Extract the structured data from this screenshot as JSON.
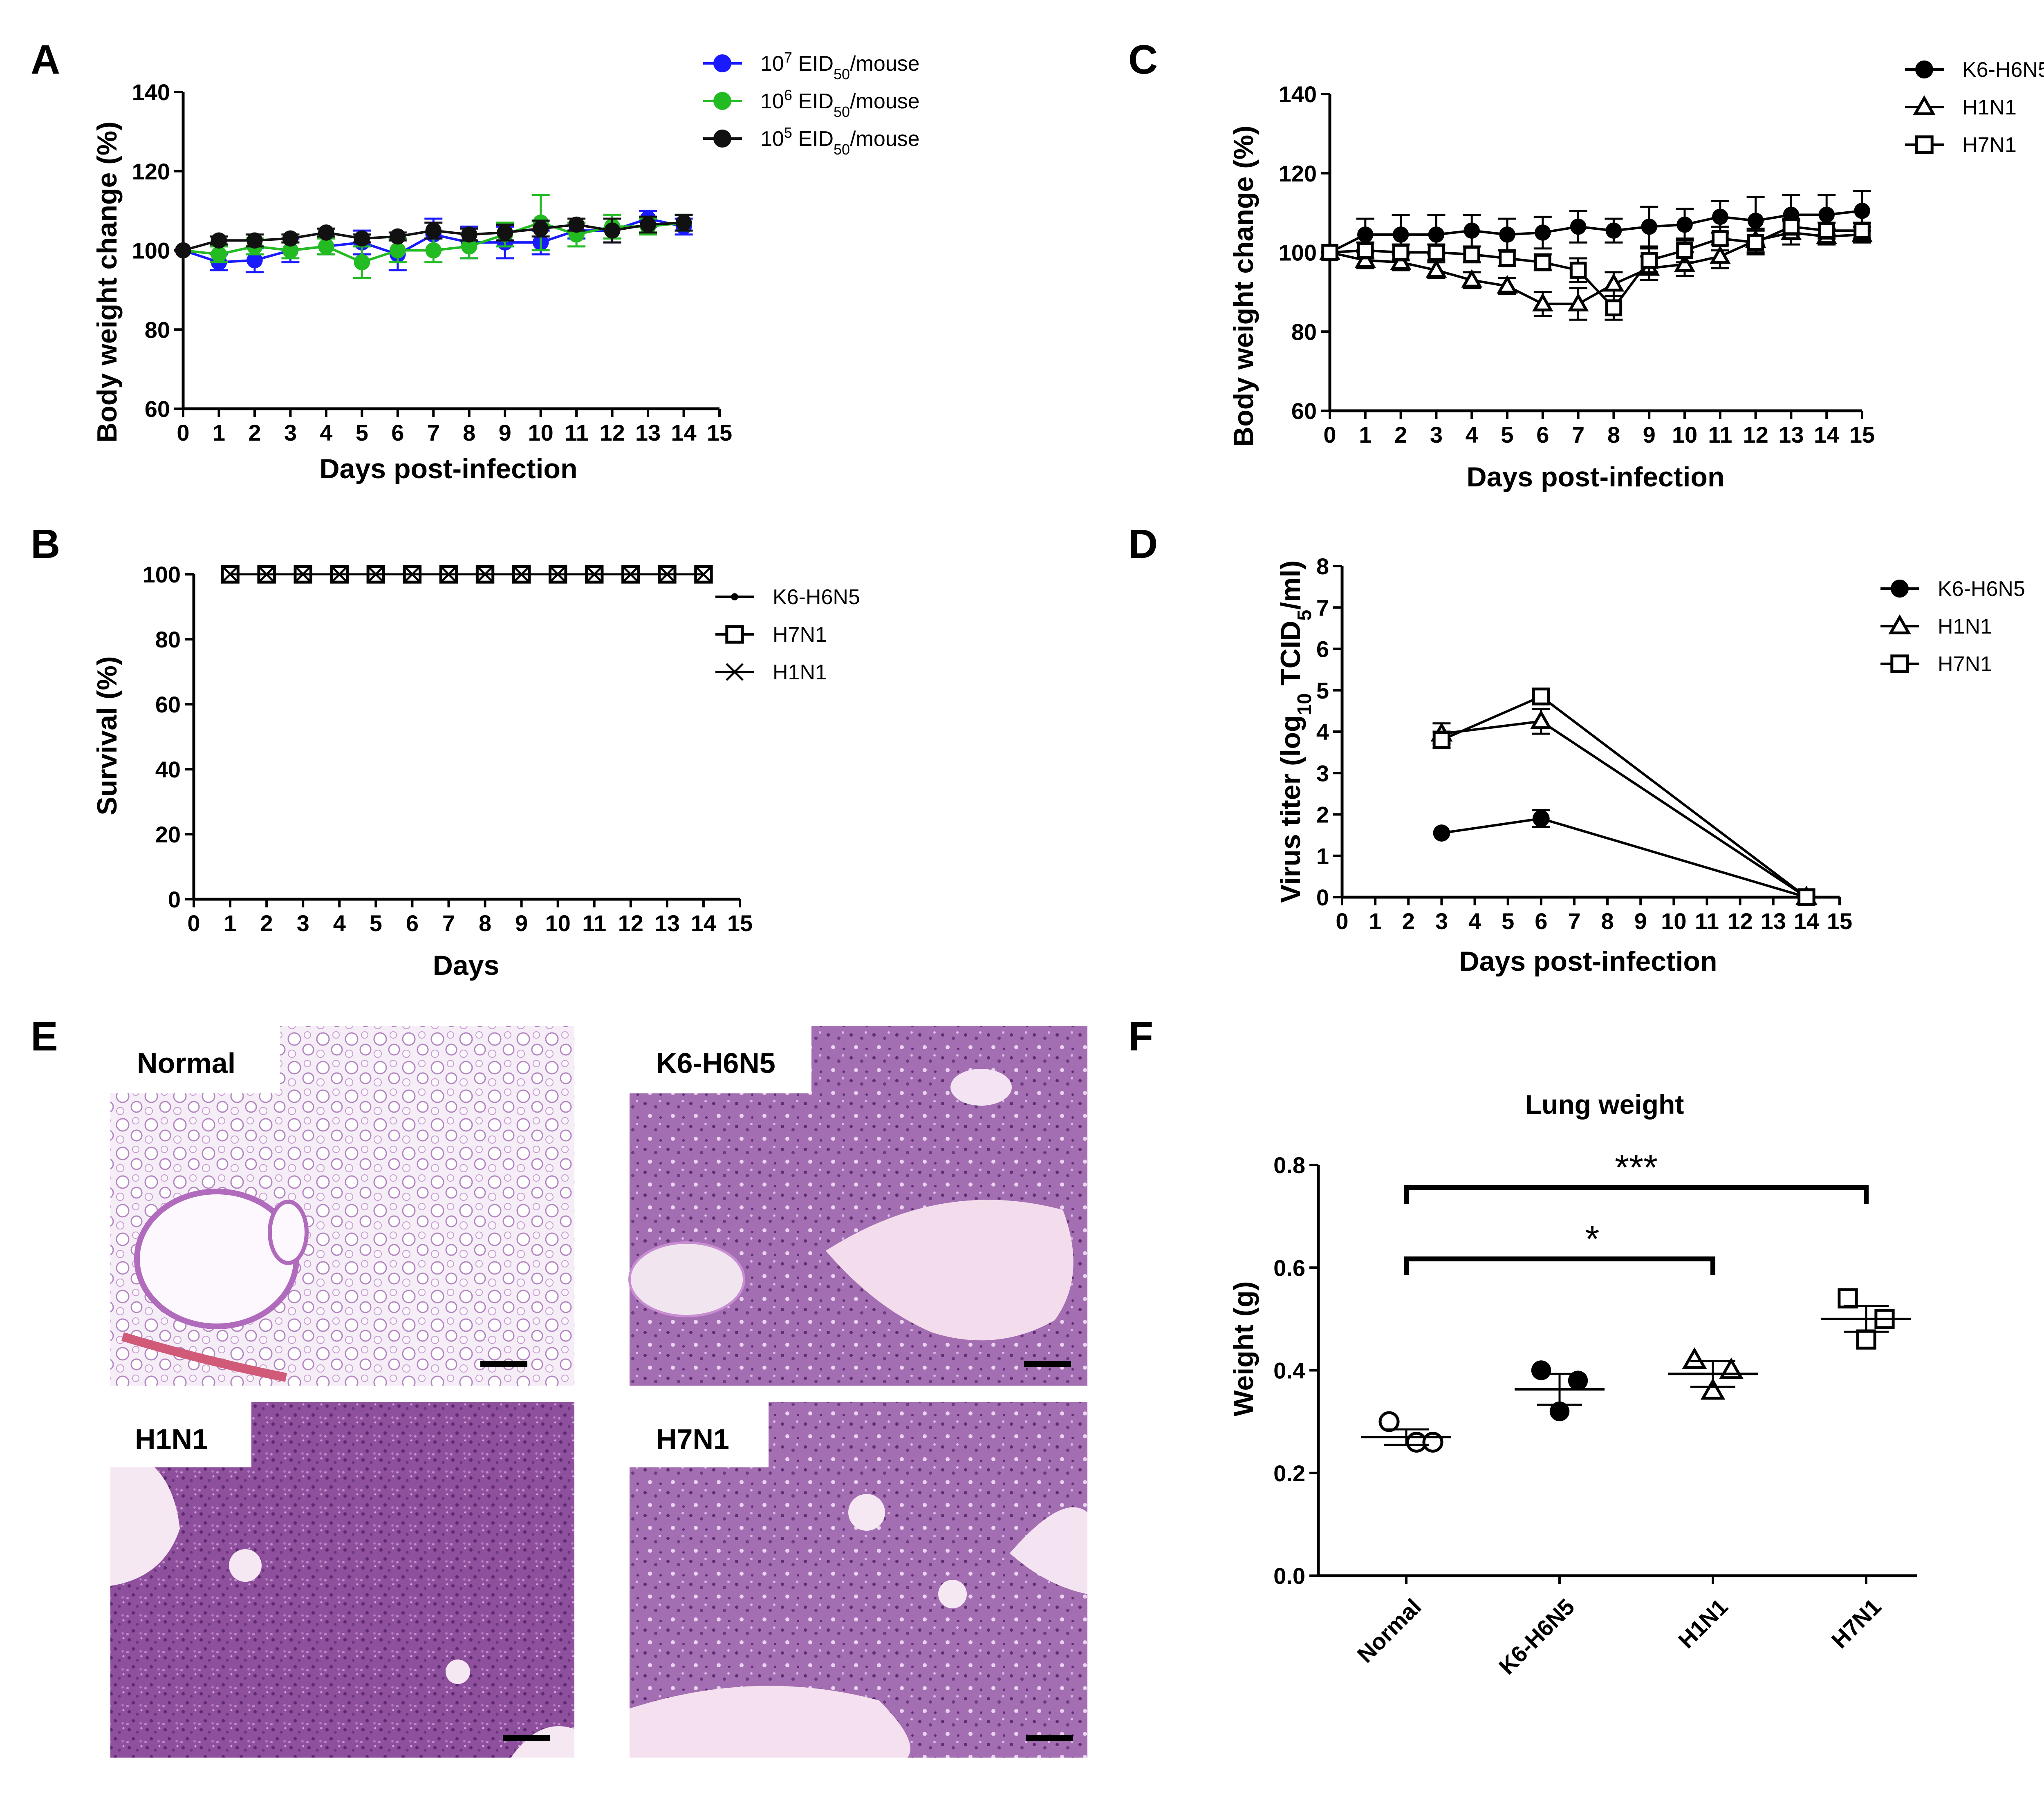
{
  "panels": {
    "A": "A",
    "B": "B",
    "C": "C",
    "D": "D",
    "E": "E",
    "F": "F"
  },
  "chart_data": [
    {
      "id": "A",
      "type": "line",
      "xlabel": "Days post-infection",
      "ylabel": "Body weight change (%)",
      "xlim": [
        0,
        15
      ],
      "ylim": [
        60,
        140
      ],
      "xticks": [
        0,
        1,
        2,
        3,
        4,
        5,
        6,
        7,
        8,
        9,
        10,
        11,
        12,
        13,
        14,
        15
      ],
      "yticks": [
        60,
        80,
        100,
        120,
        140
      ],
      "legend_position": "top-right",
      "series": [
        {
          "name": "10^7 EID50/mouse",
          "legend": {
            "base": "10",
            "exp": "7",
            "unit": " EID",
            "sub": "50",
            "suffix": "/mouse"
          },
          "color": "#1a1aff",
          "marker": "filled-circle",
          "x": [
            0,
            1,
            2,
            3,
            4,
            5,
            6,
            7,
            8,
            9,
            10,
            11,
            12,
            13,
            14
          ],
          "y": [
            100,
            97,
            97.5,
            100,
            101,
            102,
            99,
            104,
            102,
            102,
            102,
            105,
            105,
            108,
            106
          ],
          "err": [
            0,
            2,
            3,
            3,
            2,
            3,
            4,
            4,
            4,
            4,
            3,
            2,
            3,
            2,
            2
          ]
        },
        {
          "name": "10^6 EID50/mouse",
          "legend": {
            "base": "10",
            "exp": "6",
            "unit": " EID",
            "sub": "50",
            "suffix": "/mouse"
          },
          "color": "#22bb22",
          "marker": "filled-circle",
          "x": [
            0,
            1,
            2,
            3,
            4,
            5,
            6,
            7,
            8,
            9,
            10,
            11,
            12,
            13,
            14
          ],
          "y": [
            100,
            99,
            101,
            100,
            101,
            97,
            100,
            100,
            101,
            104,
            107,
            104,
            106,
            106,
            107
          ],
          "err": [
            0,
            2,
            2,
            2,
            2,
            4,
            3,
            3,
            3,
            3,
            7,
            3,
            3,
            2,
            2
          ]
        },
        {
          "name": "10^5 EID50/mouse",
          "legend": {
            "base": "10",
            "exp": "5",
            "unit": " EID",
            "sub": "50",
            "suffix": "/mouse"
          },
          "color": "#111111",
          "marker": "filled-circle",
          "x": [
            0,
            1,
            2,
            3,
            4,
            5,
            6,
            7,
            8,
            9,
            10,
            11,
            12,
            13,
            14
          ],
          "y": [
            100,
            102.5,
            102.5,
            103,
            104.5,
            103,
            103.5,
            105,
            104,
            104.5,
            105.5,
            106.5,
            105,
            106.5,
            107
          ],
          "err": [
            0,
            1,
            1.5,
            1,
            1,
            1,
            1,
            2,
            1.5,
            2,
            2,
            1.5,
            3,
            2,
            2
          ]
        }
      ]
    },
    {
      "id": "B",
      "type": "line",
      "xlabel": "Days",
      "ylabel": "Survival (%)",
      "xlim": [
        0,
        15
      ],
      "ylim": [
        0,
        100
      ],
      "xticks": [
        0,
        1,
        2,
        3,
        4,
        5,
        6,
        7,
        8,
        9,
        10,
        11,
        12,
        13,
        14,
        15
      ],
      "yticks": [
        0,
        20,
        40,
        60,
        80,
        100
      ],
      "legend_position": "top-right",
      "series": [
        {
          "name": "K6-H6N5",
          "marker": "small-dot",
          "x": [
            1,
            2,
            3,
            4,
            5,
            6,
            7,
            8,
            9,
            10,
            11,
            12,
            13,
            14
          ],
          "y": [
            100,
            100,
            100,
            100,
            100,
            100,
            100,
            100,
            100,
            100,
            100,
            100,
            100,
            100
          ]
        },
        {
          "name": "H7N1",
          "marker": "open-square",
          "x": [
            1,
            2,
            3,
            4,
            5,
            6,
            7,
            8,
            9,
            10,
            11,
            12,
            13,
            14
          ],
          "y": [
            100,
            100,
            100,
            100,
            100,
            100,
            100,
            100,
            100,
            100,
            100,
            100,
            100,
            100
          ]
        },
        {
          "name": "H1N1",
          "marker": "x-mark",
          "x": [
            1,
            2,
            3,
            4,
            5,
            6,
            7,
            8,
            9,
            10,
            11,
            12,
            13,
            14
          ],
          "y": [
            100,
            100,
            100,
            100,
            100,
            100,
            100,
            100,
            100,
            100,
            100,
            100,
            100,
            100
          ]
        }
      ]
    },
    {
      "id": "C",
      "type": "line",
      "xlabel": "Days post-infection",
      "ylabel": "Body weight change (%)",
      "xlim": [
        0,
        15
      ],
      "ylim": [
        60,
        140
      ],
      "xticks": [
        0,
        1,
        2,
        3,
        4,
        5,
        6,
        7,
        8,
        9,
        10,
        11,
        12,
        13,
        14,
        15
      ],
      "yticks": [
        60,
        80,
        100,
        120,
        140
      ],
      "legend_position": "top-right",
      "series": [
        {
          "name": "K6-H6N5",
          "marker": "filled-circle",
          "x": [
            0,
            1,
            2,
            3,
            4,
            5,
            6,
            7,
            8,
            9,
            10,
            11,
            12,
            13,
            14,
            15
          ],
          "y": [
            100,
            104.5,
            104.5,
            104.5,
            105.5,
            104.5,
            105,
            106.5,
            105.5,
            106.5,
            107,
            109,
            108,
            109.5,
            109.5,
            110.5
          ],
          "err": [
            0,
            4,
            5,
            5,
            4,
            4,
            4,
            4,
            3,
            5,
            4,
            4,
            6,
            5,
            5,
            5
          ]
        },
        {
          "name": "H1N1",
          "marker": "open-triangle",
          "x": [
            0,
            1,
            2,
            3,
            4,
            5,
            6,
            7,
            8,
            9,
            10,
            11,
            12,
            13,
            14,
            15
          ],
          "y": [
            100,
            98,
            97.5,
            95.5,
            93,
            91.5,
            87,
            87,
            92,
            96,
            97,
            99,
            103,
            105,
            104,
            104.5
          ],
          "err": [
            0,
            2,
            2,
            2,
            2,
            2,
            3,
            4,
            3,
            3,
            3,
            3,
            3,
            3,
            2,
            2
          ]
        },
        {
          "name": "H7N1",
          "marker": "open-square",
          "x": [
            0,
            1,
            2,
            3,
            4,
            5,
            6,
            7,
            8,
            9,
            10,
            11,
            12,
            13,
            14,
            15
          ],
          "y": [
            100,
            100.5,
            100,
            100,
            99.5,
            98.5,
            97.5,
            95.5,
            86,
            98,
            100.5,
            103.5,
            102.5,
            106.5,
            105.5,
            105.5
          ],
          "err": [
            0,
            2,
            2,
            2,
            2,
            2,
            2,
            3,
            3,
            3,
            3,
            3,
            3,
            2,
            2,
            2
          ]
        }
      ]
    },
    {
      "id": "D",
      "type": "line",
      "xlabel": "Days post-infection",
      "ylabel": {
        "text1": "Virus titer (log",
        "sub1": "10",
        "text2": " TCID",
        "sub2": "5",
        "text3": "/ml)"
      },
      "xlim": [
        0,
        15
      ],
      "ylim": [
        0,
        8
      ],
      "xticks": [
        0,
        1,
        2,
        3,
        4,
        5,
        6,
        7,
        8,
        9,
        10,
        11,
        12,
        13,
        14,
        15
      ],
      "yticks": [
        0,
        1,
        2,
        3,
        4,
        5,
        6,
        7,
        8
      ],
      "legend_position": "top-right",
      "series": [
        {
          "name": "K6-H6N5",
          "marker": "filled-circle",
          "x": [
            3,
            6,
            14
          ],
          "y": [
            1.55,
            1.9,
            0
          ],
          "err": [
            0,
            0.2,
            0
          ]
        },
        {
          "name": "H1N1",
          "marker": "open-triangle",
          "x": [
            3,
            6,
            14
          ],
          "y": [
            3.95,
            4.25,
            0
          ],
          "err": [
            0.25,
            0.3,
            0
          ]
        },
        {
          "name": "H7N1",
          "marker": "open-square",
          "x": [
            3,
            6,
            14
          ],
          "y": [
            3.8,
            4.85,
            0
          ],
          "err": [
            0.2,
            0.05,
            0
          ]
        }
      ]
    },
    {
      "id": "F",
      "type": "scatter",
      "title": "Lung weight",
      "xlabel": "",
      "ylabel": "Weight (g)",
      "categories": [
        "Normal",
        "K6-H6N5",
        "H1N1",
        "H7N1"
      ],
      "ylim": [
        0,
        0.8
      ],
      "yticks": [
        "0.0",
        "0.2",
        "0.4",
        "0.6",
        "0.8"
      ],
      "groups": [
        {
          "name": "Normal",
          "marker": "open-circle",
          "points": [
            0.3,
            0.26,
            0.26
          ],
          "mean": 0.27,
          "sem": 0.015
        },
        {
          "name": "K6-H6N5",
          "marker": "filled-circle",
          "points": [
            0.4,
            0.38,
            0.32
          ],
          "mean": 0.363,
          "sem": 0.03
        },
        {
          "name": "H1N1",
          "marker": "open-triangle",
          "points": [
            0.42,
            0.4,
            0.36
          ],
          "mean": 0.393,
          "sem": 0.025
        },
        {
          "name": "H7N1",
          "marker": "open-square",
          "points": [
            0.54,
            0.5,
            0.46
          ],
          "mean": 0.5,
          "sem": 0.025
        }
      ],
      "significance": [
        {
          "from": "Normal",
          "to": "H7N1",
          "label": "***"
        },
        {
          "from": "Normal",
          "to": "H1N1",
          "label": "*"
        }
      ]
    }
  ],
  "histology": {
    "panel": "E",
    "images": [
      {
        "label": "Normal"
      },
      {
        "label": "K6-H6N5"
      },
      {
        "label": "H1N1"
      },
      {
        "label": "H7N1"
      }
    ]
  }
}
